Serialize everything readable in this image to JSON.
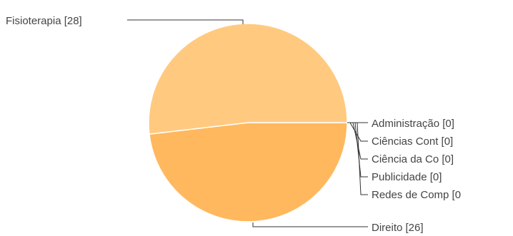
{
  "chart_data": {
    "type": "pie",
    "title": "",
    "start_angle_deg": 0,
    "direction": "clockwise_from_right",
    "colors": [
      "#FFB85E",
      "#FFCA80"
    ],
    "slices": [
      {
        "label": "Administração",
        "value": 0
      },
      {
        "label": "Ciências Cont",
        "value": 0
      },
      {
        "label": "Ciência da Co",
        "value": 0
      },
      {
        "label": "Publicidade",
        "value": 0
      },
      {
        "label": "Redes de Comp",
        "value": 0
      },
      {
        "label": "Direito",
        "value": 26
      },
      {
        "label": "Fisioterapia",
        "value": 28
      }
    ],
    "labels_text": [
      "Administração [0]",
      "Ciências Cont [0]",
      "Ciência da Co [0]",
      "Publicidade [0]",
      "Redes de Comp [0",
      "Direito [26]",
      "Fisioterapia [28]"
    ]
  }
}
